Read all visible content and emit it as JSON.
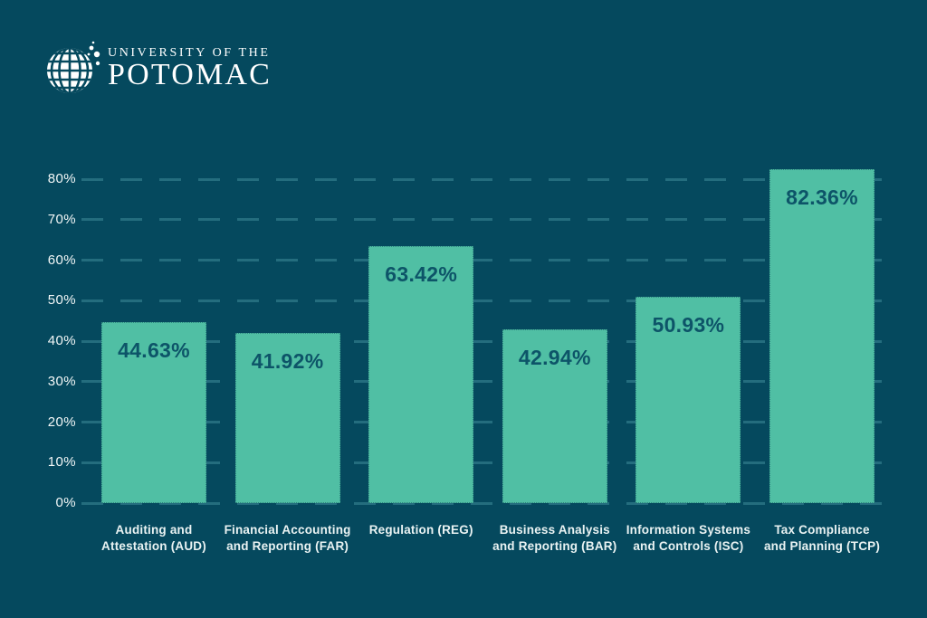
{
  "logo": {
    "line1": "UNIVERSITY OF THE",
    "line2": "POTOMAC"
  },
  "chart_data": {
    "type": "bar",
    "title": "",
    "categories": [
      "Auditing and Attestation (AUD)",
      "Financial Accounting and Reporting (FAR)",
      "Regulation (REG)",
      "Business Analysis and Reporting (BAR)",
      "Information Systems and Controls (ISC)",
      "Tax Compliance and Planning (TCP)"
    ],
    "category_lines": [
      [
        "Auditing and",
        "Attestation (AUD)"
      ],
      [
        "Financial Accounting",
        "and Reporting (FAR)"
      ],
      [
        "Regulation (REG)"
      ],
      [
        "Business Analysis",
        "and Reporting (BAR)"
      ],
      [
        "Information Systems",
        "and Controls (ISC)"
      ],
      [
        "Tax Compliance",
        "and Planning (TCP)"
      ]
    ],
    "values": [
      44.63,
      41.92,
      63.42,
      42.94,
      50.93,
      82.36
    ],
    "value_labels": [
      "44.63%",
      "41.92%",
      "63.42%",
      "42.94%",
      "50.93%",
      "82.36%"
    ],
    "xlabel": "",
    "ylabel": "",
    "ylim": [
      0,
      80
    ],
    "y_tick_labels": [
      "0%",
      "10%",
      "20%",
      "30%",
      "40%",
      "50%",
      "60%",
      "70%",
      "80%"
    ],
    "grid": "horizontal-dashed",
    "legend": "none",
    "colors": {
      "background": "#05495E",
      "bar": "#50BFA4",
      "value_text": "#0D5468",
      "grid_line": "#2A7383",
      "tick_text": "#F2F7F7",
      "category_text": "#EAF3F3",
      "logo": "#FFFFFF"
    }
  }
}
